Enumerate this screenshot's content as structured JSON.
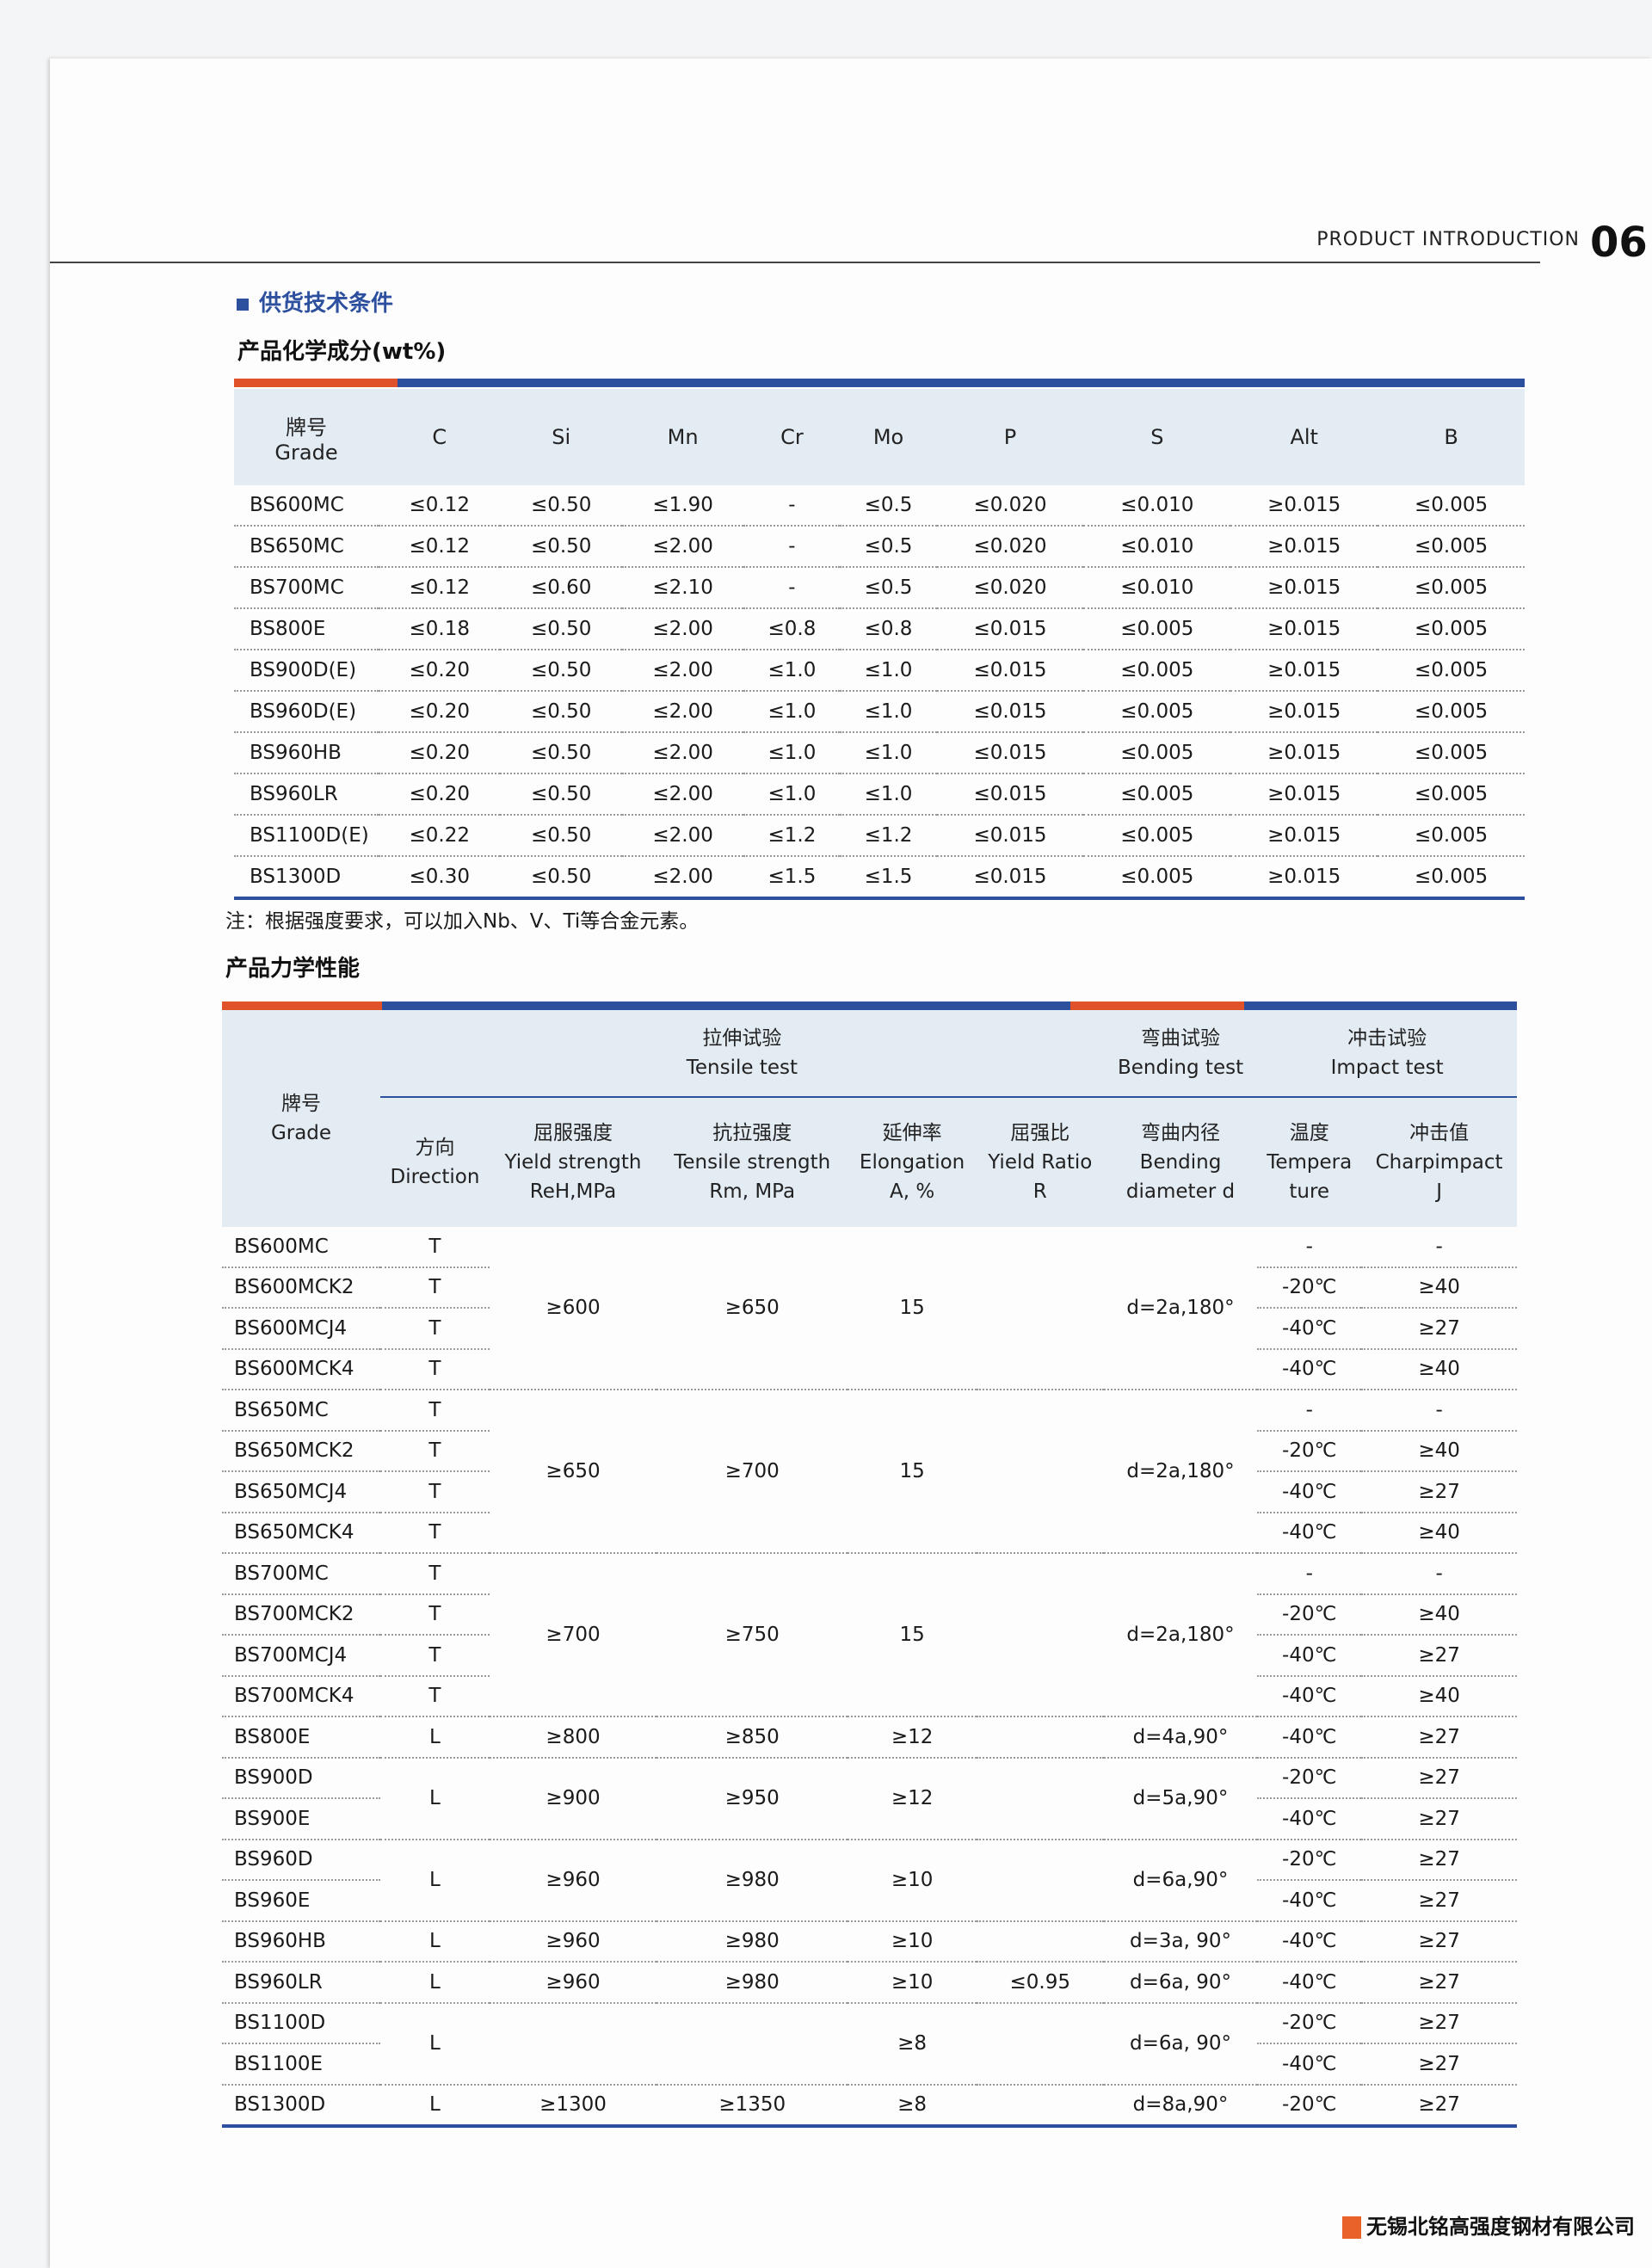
{
  "header": {
    "section": "PRODUCT INTRODUCTION",
    "page_number": "06"
  },
  "section_title": "供货技术条件",
  "chemical": {
    "title": "产品化学成分(wt%)",
    "grade_header_cn": "牌号",
    "grade_header_en": "Grade",
    "columns": [
      "C",
      "Si",
      "Mn",
      "Cr",
      "Mo",
      "P",
      "S",
      "Alt",
      "B"
    ],
    "rows": [
      [
        "BS600MC",
        "≤0.12",
        "≤0.50",
        "≤1.90",
        "-",
        "≤0.5",
        "≤0.020",
        "≤0.010",
        "≥0.015",
        "≤0.005"
      ],
      [
        "BS650MC",
        "≤0.12",
        "≤0.50",
        "≤2.00",
        "-",
        "≤0.5",
        "≤0.020",
        "≤0.010",
        "≥0.015",
        "≤0.005"
      ],
      [
        "BS700MC",
        "≤0.12",
        "≤0.60",
        "≤2.10",
        "-",
        "≤0.5",
        "≤0.020",
        "≤0.010",
        "≥0.015",
        "≤0.005"
      ],
      [
        "BS800E",
        "≤0.18",
        "≤0.50",
        "≤2.00",
        "≤0.8",
        "≤0.8",
        "≤0.015",
        "≤0.005",
        "≥0.015",
        "≤0.005"
      ],
      [
        "BS900D(E)",
        "≤0.20",
        "≤0.50",
        "≤2.00",
        "≤1.0",
        "≤1.0",
        "≤0.015",
        "≤0.005",
        "≥0.015",
        "≤0.005"
      ],
      [
        "BS960D(E)",
        "≤0.20",
        "≤0.50",
        "≤2.00",
        "≤1.0",
        "≤1.0",
        "≤0.015",
        "≤0.005",
        "≥0.015",
        "≤0.005"
      ],
      [
        "BS960HB",
        "≤0.20",
        "≤0.50",
        "≤2.00",
        "≤1.0",
        "≤1.0",
        "≤0.015",
        "≤0.005",
        "≥0.015",
        "≤0.005"
      ],
      [
        "BS960LR",
        "≤0.20",
        "≤0.50",
        "≤2.00",
        "≤1.0",
        "≤1.0",
        "≤0.015",
        "≤0.005",
        "≥0.015",
        "≤0.005"
      ],
      [
        "BS1100D(E)",
        "≤0.22",
        "≤0.50",
        "≤2.00",
        "≤1.2",
        "≤1.2",
        "≤0.015",
        "≤0.005",
        "≥0.015",
        "≤0.005"
      ],
      [
        "BS1300D",
        "≤0.30",
        "≤0.50",
        "≤2.00",
        "≤1.5",
        "≤1.5",
        "≤0.015",
        "≤0.005",
        "≥0.015",
        "≤0.005"
      ]
    ],
    "note": "注：根据强度要求，可以加入Nb、V、Ti等合金元素。"
  },
  "mechanical": {
    "title": "产品力学性能",
    "header": {
      "grade_cn": "牌号",
      "grade_en": "Grade",
      "tensile_cn": "拉伸试验",
      "tensile_en": "Tensile test",
      "bending_cn": "弯曲试验",
      "bending_en": "Bending test",
      "impact_cn": "冲击试验",
      "impact_en": "Impact test",
      "sub": [
        [
          "方向",
          "Direction",
          ""
        ],
        [
          "屈服强度",
          "Yield strength",
          "ReH,MPa"
        ],
        [
          "抗拉强度",
          "Tensile strength",
          "Rm, MPa"
        ],
        [
          "延伸率",
          "Elongation",
          "A, %"
        ],
        [
          "屈强比",
          "Yield Ratio",
          "R"
        ],
        [
          "弯曲内径",
          "Bending",
          "diameter d"
        ],
        [
          "温度",
          "Tempera",
          "ture"
        ],
        [
          "冲击值",
          "Charpimpact",
          "J"
        ]
      ]
    },
    "groups": [
      {
        "grades": [
          "BS600MC",
          "BS600MCK2",
          "BS600MCJ4",
          "BS600MCK4"
        ],
        "direction": [
          "T",
          "T",
          "T",
          "T"
        ],
        "yield": "≥600",
        "tensile": "≥650",
        "elongation": "15",
        "yield_ratio": "",
        "bending": "d=2a,180°",
        "impact": [
          [
            "-",
            "-"
          ],
          [
            "-20℃",
            "≥40"
          ],
          [
            "-40℃",
            "≥27"
          ],
          [
            "-40℃",
            "≥40"
          ]
        ]
      },
      {
        "grades": [
          "BS650MC",
          "BS650MCK2",
          "BS650MCJ4",
          "BS650MCK4"
        ],
        "direction": [
          "T",
          "T",
          "T",
          "T"
        ],
        "yield": "≥650",
        "tensile": "≥700",
        "elongation": "15",
        "yield_ratio": "",
        "bending": "d=2a,180°",
        "impact": [
          [
            "-",
            "-"
          ],
          [
            "-20℃",
            "≥40"
          ],
          [
            "-40℃",
            "≥27"
          ],
          [
            "-40℃",
            "≥40"
          ]
        ]
      },
      {
        "grades": [
          "BS700MC",
          "BS700MCK2",
          "BS700MCJ4",
          "BS700MCK4"
        ],
        "direction": [
          "T",
          "T",
          "T",
          "T"
        ],
        "yield": "≥700",
        "tensile": "≥750",
        "elongation": "15",
        "yield_ratio": "",
        "bending": "d=2a,180°",
        "impact": [
          [
            "-",
            "-"
          ],
          [
            "-20℃",
            "≥40"
          ],
          [
            "-40℃",
            "≥27"
          ],
          [
            "-40℃",
            "≥40"
          ]
        ]
      },
      {
        "grades": [
          "BS800E"
        ],
        "direction": [
          "L"
        ],
        "yield": "≥800",
        "tensile": "≥850",
        "elongation": "≥12",
        "yield_ratio": "",
        "bending": "d=4a,90°",
        "impact": [
          [
            "-40℃",
            "≥27"
          ]
        ]
      },
      {
        "grades": [
          "BS900D",
          "BS900E"
        ],
        "direction": [
          "L"
        ],
        "yield": "≥900",
        "tensile": "≥950",
        "elongation": "≥12",
        "yield_ratio": "",
        "bending": "d=5a,90°",
        "impact": [
          [
            "-20℃",
            "≥27"
          ],
          [
            "-40℃",
            "≥27"
          ]
        ]
      },
      {
        "grades": [
          "BS960D",
          "BS960E"
        ],
        "direction": [
          "L"
        ],
        "yield": "≥960",
        "tensile": "≥980",
        "elongation": "≥10",
        "yield_ratio": "",
        "bending": "d=6a,90°",
        "impact": [
          [
            "-20℃",
            "≥27"
          ],
          [
            "-40℃",
            "≥27"
          ]
        ]
      },
      {
        "grades": [
          "BS960HB"
        ],
        "direction": [
          "L"
        ],
        "yield": "≥960",
        "tensile": "≥980",
        "elongation": "≥10",
        "yield_ratio": "",
        "bending": "d=3a, 90°",
        "impact": [
          [
            "-40℃",
            "≥27"
          ]
        ]
      },
      {
        "grades": [
          "BS960LR"
        ],
        "direction": [
          "L"
        ],
        "yield": "≥960",
        "tensile": "≥980",
        "elongation": "≥10",
        "yield_ratio": "≤0.95",
        "bending": "d=6a, 90°",
        "impact": [
          [
            "-40℃",
            "≥27"
          ]
        ]
      },
      {
        "grades": [
          "BS1100D",
          "BS1100E"
        ],
        "direction": [
          "L"
        ],
        "yield": "",
        "tensile": "",
        "elongation": "≥8",
        "yield_ratio": "",
        "bending": "d=6a, 90°",
        "impact": [
          [
            "-20℃",
            "≥27"
          ],
          [
            "-40℃",
            "≥27"
          ]
        ]
      },
      {
        "grades": [
          "BS1300D"
        ],
        "direction": [
          "L"
        ],
        "yield": "≥1300",
        "tensile": "≥1350",
        "elongation": "≥8",
        "yield_ratio": "",
        "bending": "d=8a,90°",
        "impact": [
          [
            "-20℃",
            "≥27"
          ]
        ]
      }
    ]
  },
  "footer": {
    "company": "无锡北铭高强度钢材有限公司"
  },
  "colors": {
    "accent_blue": "#2c4f9e",
    "accent_orange": "#e0522a",
    "header_bg": "#e3ebf3"
  }
}
